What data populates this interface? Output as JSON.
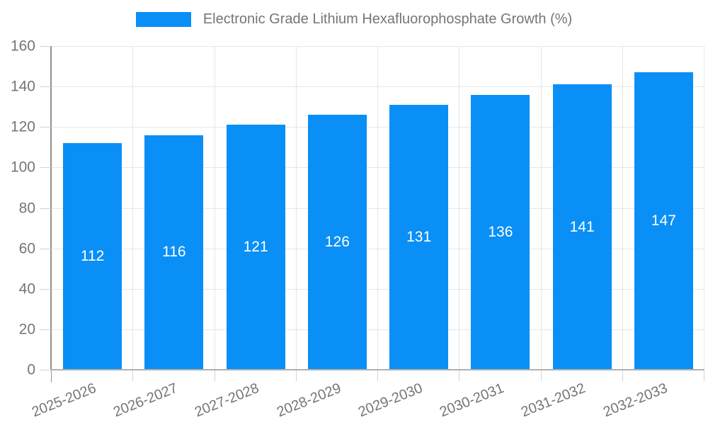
{
  "chart_data": {
    "type": "bar",
    "title": "Electronic Grade Lithium Hexafluorophosphate Growth (%)",
    "categories": [
      "2025-2026",
      "2026-2027",
      "2027-2028",
      "2028-2029",
      "2029-2030",
      "2030-2031",
      "2031-2032",
      "2032-2033"
    ],
    "values": [
      112,
      116,
      121,
      126,
      131,
      136,
      141,
      147
    ],
    "xlabel": "",
    "ylabel": "",
    "ylim": [
      0,
      160
    ],
    "yticks": [
      0,
      20,
      40,
      60,
      80,
      100,
      120,
      140,
      160
    ],
    "grid": true,
    "legend_position": "top-center",
    "bar_color": "#0a8ff7",
    "value_label_color": "#ffffff",
    "axis_text_color": "#757575",
    "x_label_rotation_deg": -22
  }
}
